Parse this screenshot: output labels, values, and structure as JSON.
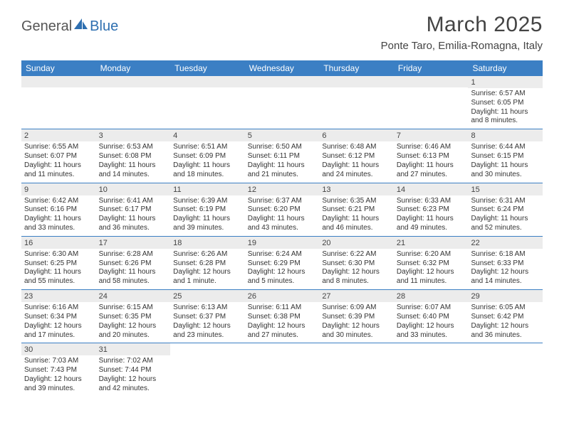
{
  "brand": {
    "part1": "General",
    "part2": "Blue"
  },
  "title": "March 2025",
  "location": "Ponte Taro, Emilia-Romagna, Italy",
  "colors": {
    "header_bg": "#3b7fc4",
    "header_text": "#ffffff",
    "daynum_bg": "#ececec",
    "week_border": "#3b7fc4",
    "text": "#333333",
    "brand_blue": "#2e6fb0"
  },
  "day_names": [
    "Sunday",
    "Monday",
    "Tuesday",
    "Wednesday",
    "Thursday",
    "Friday",
    "Saturday"
  ],
  "weeks": [
    [
      {
        "n": "",
        "sr": "",
        "ss": "",
        "dl": ""
      },
      {
        "n": "",
        "sr": "",
        "ss": "",
        "dl": ""
      },
      {
        "n": "",
        "sr": "",
        "ss": "",
        "dl": ""
      },
      {
        "n": "",
        "sr": "",
        "ss": "",
        "dl": ""
      },
      {
        "n": "",
        "sr": "",
        "ss": "",
        "dl": ""
      },
      {
        "n": "",
        "sr": "",
        "ss": "",
        "dl": ""
      },
      {
        "n": "1",
        "sr": "Sunrise: 6:57 AM",
        "ss": "Sunset: 6:05 PM",
        "dl": "Daylight: 11 hours and 8 minutes."
      }
    ],
    [
      {
        "n": "2",
        "sr": "Sunrise: 6:55 AM",
        "ss": "Sunset: 6:07 PM",
        "dl": "Daylight: 11 hours and 11 minutes."
      },
      {
        "n": "3",
        "sr": "Sunrise: 6:53 AM",
        "ss": "Sunset: 6:08 PM",
        "dl": "Daylight: 11 hours and 14 minutes."
      },
      {
        "n": "4",
        "sr": "Sunrise: 6:51 AM",
        "ss": "Sunset: 6:09 PM",
        "dl": "Daylight: 11 hours and 18 minutes."
      },
      {
        "n": "5",
        "sr": "Sunrise: 6:50 AM",
        "ss": "Sunset: 6:11 PM",
        "dl": "Daylight: 11 hours and 21 minutes."
      },
      {
        "n": "6",
        "sr": "Sunrise: 6:48 AM",
        "ss": "Sunset: 6:12 PM",
        "dl": "Daylight: 11 hours and 24 minutes."
      },
      {
        "n": "7",
        "sr": "Sunrise: 6:46 AM",
        "ss": "Sunset: 6:13 PM",
        "dl": "Daylight: 11 hours and 27 minutes."
      },
      {
        "n": "8",
        "sr": "Sunrise: 6:44 AM",
        "ss": "Sunset: 6:15 PM",
        "dl": "Daylight: 11 hours and 30 minutes."
      }
    ],
    [
      {
        "n": "9",
        "sr": "Sunrise: 6:42 AM",
        "ss": "Sunset: 6:16 PM",
        "dl": "Daylight: 11 hours and 33 minutes."
      },
      {
        "n": "10",
        "sr": "Sunrise: 6:41 AM",
        "ss": "Sunset: 6:17 PM",
        "dl": "Daylight: 11 hours and 36 minutes."
      },
      {
        "n": "11",
        "sr": "Sunrise: 6:39 AM",
        "ss": "Sunset: 6:19 PM",
        "dl": "Daylight: 11 hours and 39 minutes."
      },
      {
        "n": "12",
        "sr": "Sunrise: 6:37 AM",
        "ss": "Sunset: 6:20 PM",
        "dl": "Daylight: 11 hours and 43 minutes."
      },
      {
        "n": "13",
        "sr": "Sunrise: 6:35 AM",
        "ss": "Sunset: 6:21 PM",
        "dl": "Daylight: 11 hours and 46 minutes."
      },
      {
        "n": "14",
        "sr": "Sunrise: 6:33 AM",
        "ss": "Sunset: 6:23 PM",
        "dl": "Daylight: 11 hours and 49 minutes."
      },
      {
        "n": "15",
        "sr": "Sunrise: 6:31 AM",
        "ss": "Sunset: 6:24 PM",
        "dl": "Daylight: 11 hours and 52 minutes."
      }
    ],
    [
      {
        "n": "16",
        "sr": "Sunrise: 6:30 AM",
        "ss": "Sunset: 6:25 PM",
        "dl": "Daylight: 11 hours and 55 minutes."
      },
      {
        "n": "17",
        "sr": "Sunrise: 6:28 AM",
        "ss": "Sunset: 6:26 PM",
        "dl": "Daylight: 11 hours and 58 minutes."
      },
      {
        "n": "18",
        "sr": "Sunrise: 6:26 AM",
        "ss": "Sunset: 6:28 PM",
        "dl": "Daylight: 12 hours and 1 minute."
      },
      {
        "n": "19",
        "sr": "Sunrise: 6:24 AM",
        "ss": "Sunset: 6:29 PM",
        "dl": "Daylight: 12 hours and 5 minutes."
      },
      {
        "n": "20",
        "sr": "Sunrise: 6:22 AM",
        "ss": "Sunset: 6:30 PM",
        "dl": "Daylight: 12 hours and 8 minutes."
      },
      {
        "n": "21",
        "sr": "Sunrise: 6:20 AM",
        "ss": "Sunset: 6:32 PM",
        "dl": "Daylight: 12 hours and 11 minutes."
      },
      {
        "n": "22",
        "sr": "Sunrise: 6:18 AM",
        "ss": "Sunset: 6:33 PM",
        "dl": "Daylight: 12 hours and 14 minutes."
      }
    ],
    [
      {
        "n": "23",
        "sr": "Sunrise: 6:16 AM",
        "ss": "Sunset: 6:34 PM",
        "dl": "Daylight: 12 hours and 17 minutes."
      },
      {
        "n": "24",
        "sr": "Sunrise: 6:15 AM",
        "ss": "Sunset: 6:35 PM",
        "dl": "Daylight: 12 hours and 20 minutes."
      },
      {
        "n": "25",
        "sr": "Sunrise: 6:13 AM",
        "ss": "Sunset: 6:37 PM",
        "dl": "Daylight: 12 hours and 23 minutes."
      },
      {
        "n": "26",
        "sr": "Sunrise: 6:11 AM",
        "ss": "Sunset: 6:38 PM",
        "dl": "Daylight: 12 hours and 27 minutes."
      },
      {
        "n": "27",
        "sr": "Sunrise: 6:09 AM",
        "ss": "Sunset: 6:39 PM",
        "dl": "Daylight: 12 hours and 30 minutes."
      },
      {
        "n": "28",
        "sr": "Sunrise: 6:07 AM",
        "ss": "Sunset: 6:40 PM",
        "dl": "Daylight: 12 hours and 33 minutes."
      },
      {
        "n": "29",
        "sr": "Sunrise: 6:05 AM",
        "ss": "Sunset: 6:42 PM",
        "dl": "Daylight: 12 hours and 36 minutes."
      }
    ],
    [
      {
        "n": "30",
        "sr": "Sunrise: 7:03 AM",
        "ss": "Sunset: 7:43 PM",
        "dl": "Daylight: 12 hours and 39 minutes."
      },
      {
        "n": "31",
        "sr": "Sunrise: 7:02 AM",
        "ss": "Sunset: 7:44 PM",
        "dl": "Daylight: 12 hours and 42 minutes."
      },
      {
        "n": "",
        "sr": "",
        "ss": "",
        "dl": ""
      },
      {
        "n": "",
        "sr": "",
        "ss": "",
        "dl": ""
      },
      {
        "n": "",
        "sr": "",
        "ss": "",
        "dl": ""
      },
      {
        "n": "",
        "sr": "",
        "ss": "",
        "dl": ""
      },
      {
        "n": "",
        "sr": "",
        "ss": "",
        "dl": ""
      }
    ]
  ]
}
